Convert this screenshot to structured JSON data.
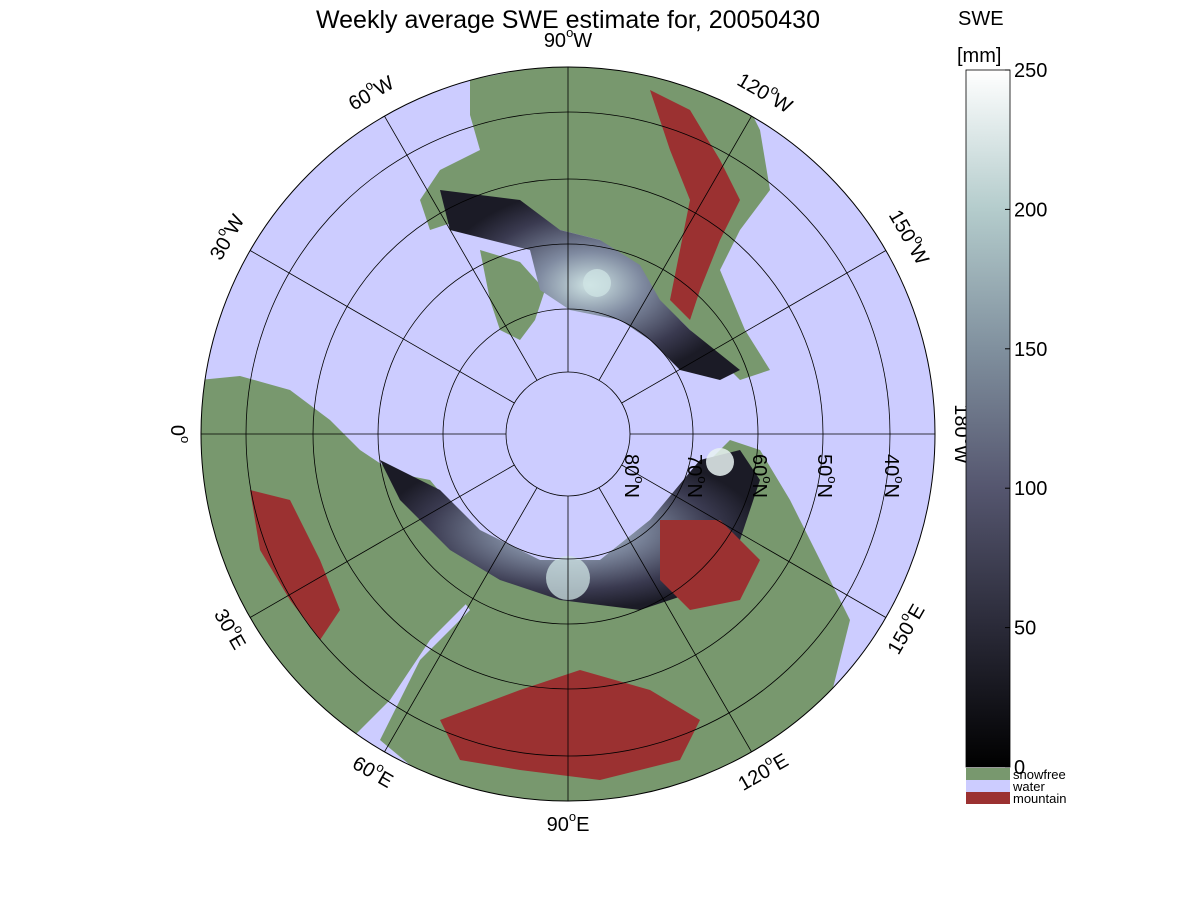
{
  "map": {
    "title": "Weekly average SWE estimate for, 20050430",
    "projection": "north-polar-stereographic",
    "colors": {
      "water": "#ccccff",
      "snowfree": "#78986e",
      "mountain": "#9b3131",
      "graticule": "#000000"
    },
    "lon_labels": [
      {
        "text": "90",
        "sup": "o",
        "suffix": "W"
      },
      {
        "text": "120",
        "sup": "o",
        "suffix": "W"
      },
      {
        "text": "150",
        "sup": "o",
        "suffix": "W"
      },
      {
        "text": "180",
        "sup": "o",
        "suffix": "W"
      },
      {
        "text": "150",
        "sup": "o",
        "suffix": "E"
      },
      {
        "text": "120",
        "sup": "o",
        "suffix": "E"
      },
      {
        "text": "90",
        "sup": "o",
        "suffix": "E"
      },
      {
        "text": "60",
        "sup": "o",
        "suffix": "E"
      },
      {
        "text": "30",
        "sup": "o",
        "suffix": "E"
      },
      {
        "text": "0",
        "sup": "o",
        "suffix": ""
      },
      {
        "text": "30",
        "sup": "o",
        "suffix": "W"
      },
      {
        "text": "60",
        "sup": "o",
        "suffix": "W"
      }
    ],
    "lat_labels": [
      {
        "text": "80",
        "sup": "o",
        "suffix": "N"
      },
      {
        "text": "70",
        "sup": "o",
        "suffix": "N"
      },
      {
        "text": "60",
        "sup": "o",
        "suffix": "N"
      },
      {
        "text": "50",
        "sup": "o",
        "suffix": "N"
      },
      {
        "text": "40",
        "sup": "o",
        "suffix": "N"
      }
    ]
  },
  "colorbar": {
    "title_line1": "SWE",
    "title_line2": "[mm]",
    "range": [
      0,
      250
    ],
    "ticks": [
      "0",
      "50",
      "100",
      "150",
      "200",
      "250"
    ],
    "legend": [
      {
        "name": "snowfree",
        "label": "snowfree",
        "color": "#78986e"
      },
      {
        "name": "water",
        "label": "water",
        "color": "#ccccff"
      },
      {
        "name": "mountain",
        "label": "mountain",
        "color": "#9b3131"
      }
    ]
  }
}
